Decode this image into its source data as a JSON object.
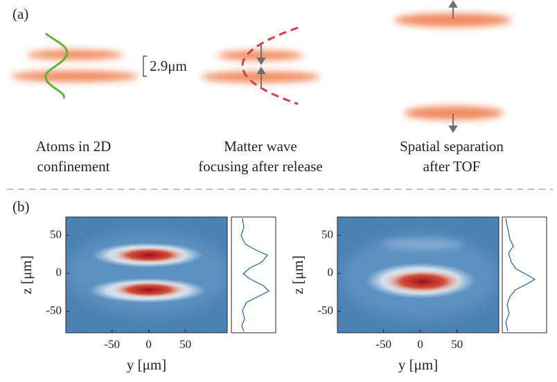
{
  "panel_a": {
    "label": "(a)",
    "spacing": "2.9μm",
    "captions": [
      {
        "lines": [
          "Atoms in 2D",
          "confinement"
        ]
      },
      {
        "lines": [
          "Matter wave",
          "focusing after release"
        ]
      },
      {
        "lines": [
          "Spatial separation",
          "after TOF"
        ]
      }
    ]
  },
  "panel_b": {
    "label": "(b)",
    "plots": [
      {
        "xlabel": "y [μm]",
        "ylabel": "z [μm]",
        "xlim": [
          -113,
          107
        ],
        "ylim": [
          -78,
          74
        ],
        "xticks": [
          -50,
          0,
          50
        ],
        "yticks": [
          50,
          0,
          -50
        ]
      },
      {
        "xlabel": "y [μm]",
        "ylabel": "z [μm]",
        "xlim": [
          -113,
          107
        ],
        "ylim": [
          -78,
          74
        ],
        "xticks": [
          -50,
          0,
          50
        ],
        "yticks": [
          50,
          0,
          -50
        ]
      }
    ]
  }
}
